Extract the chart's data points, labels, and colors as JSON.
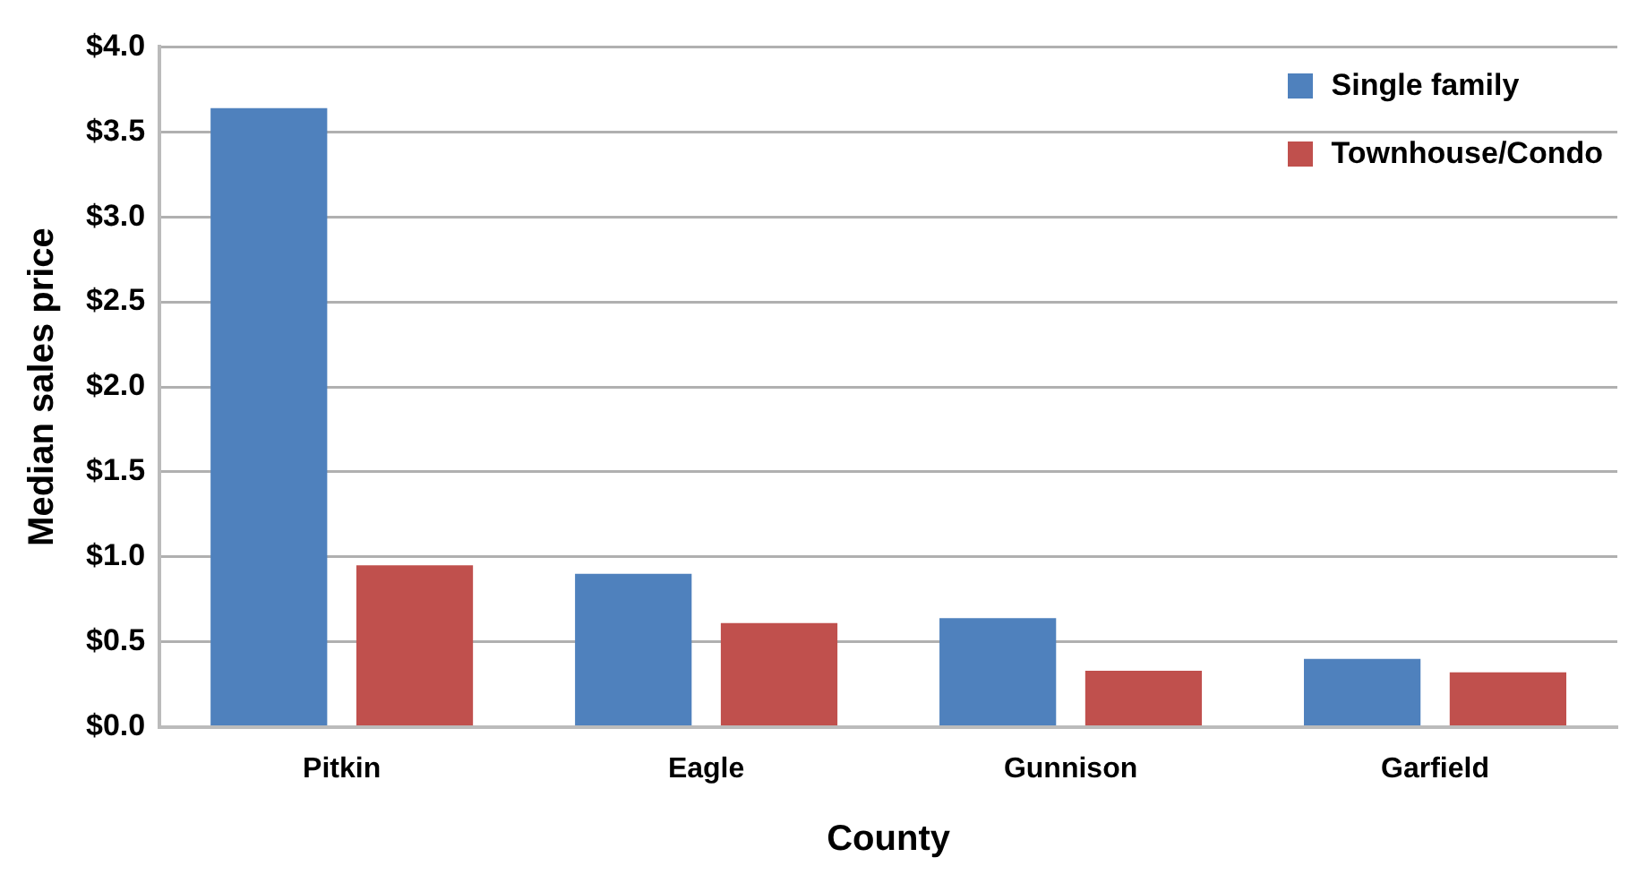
{
  "chart_data": {
    "type": "bar",
    "xlabel": "County",
    "ylabel": "Median sales price",
    "categories": [
      "Pitkin",
      "Eagle",
      "Gunnison",
      "Garfield"
    ],
    "series": [
      {
        "name": "Single family",
        "color": "#4f81bd",
        "values": [
          3.64,
          0.9,
          0.64,
          0.4
        ]
      },
      {
        "name": "Townhouse/Condo",
        "color": "#c0504d",
        "values": [
          0.95,
          0.61,
          0.33,
          0.32
        ]
      }
    ],
    "ylim": [
      0,
      4
    ],
    "yticks": [
      {
        "value": 0,
        "label": "$0.0"
      },
      {
        "value": 0.5,
        "label": "$0.5"
      },
      {
        "value": 1,
        "label": "$1.0"
      },
      {
        "value": 1.5,
        "label": "$1.5"
      },
      {
        "value": 2,
        "label": "$2.0"
      },
      {
        "value": 2.5,
        "label": "$2.5"
      },
      {
        "value": 3,
        "label": "$3.0"
      },
      {
        "value": 3.5,
        "label": "$3.5"
      },
      {
        "value": 4,
        "label": "$4.0"
      }
    ],
    "grid": "y",
    "legend": "top right"
  }
}
